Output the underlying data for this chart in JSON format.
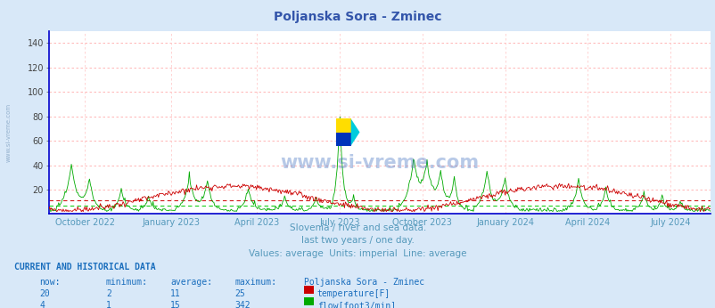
{
  "title": "Poljanska Sora - Zminec",
  "title_color": "#3355aa",
  "bg_color": "#d8e8f8",
  "plot_bg_color": "#ffffff",
  "fig_width": 8.03,
  "fig_height": 3.46,
  "dpi": 100,
  "ylim": [
    0,
    150
  ],
  "yticks": [
    20,
    40,
    60,
    80,
    100,
    120,
    140
  ],
  "grid_color_h": "#ffaaaa",
  "grid_color_v": "#ffcccc",
  "temp_color": "#cc0000",
  "flow_color": "#00aa00",
  "avg_temp_color": "#cc0000",
  "avg_flow_color": "#00cc00",
  "watermark_text": "www.si-vreme.com",
  "watermark_color": "#3366bb",
  "watermark_alpha": 0.35,
  "subtitle1": "Slovenia / river and sea data.",
  "subtitle2": "last two years / one day.",
  "subtitle3": "Values: average  Units: imperial  Line: average",
  "subtitle_color": "#5599bb",
  "table_header": "CURRENT AND HISTORICAL DATA",
  "table_color": "#1a6ebd",
  "table_cols": [
    "now:",
    "minimum:",
    "average:",
    "maximum:",
    "Poljanska Sora - Zminec"
  ],
  "table_row1": [
    "20",
    "2",
    "11",
    "25"
  ],
  "table_row2": [
    "4",
    "1",
    "15",
    "342"
  ],
  "label_temp": "temperature[F]",
  "label_flow": "flow[foot3/min]",
  "temp_avg_val": 11,
  "flow_avg_val": 15,
  "flow_max_val": 342,
  "x_tick_labels": [
    "October 2022",
    "January 2023",
    "April 2023",
    "July 2023",
    "October 2023",
    "January 2024",
    "April 2024",
    "July 2024"
  ],
  "x_tick_positions": [
    0.055,
    0.185,
    0.315,
    0.44,
    0.565,
    0.69,
    0.815,
    0.94
  ],
  "n_points": 730,
  "left_border_color": "#0000cc",
  "bottom_border_color": "#0000cc",
  "right_arrow_color": "#cc0000",
  "top_arrow_color": "#cc0000"
}
